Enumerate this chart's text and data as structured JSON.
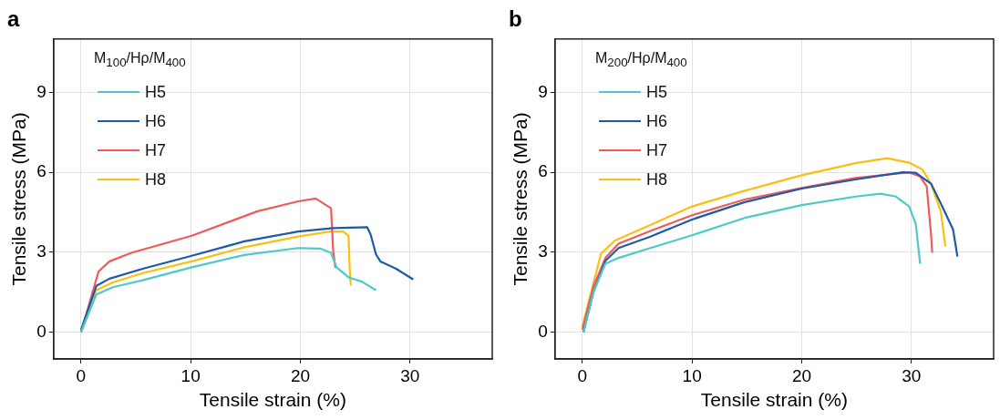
{
  "chart_data": [
    {
      "type": "line",
      "title": "a",
      "xlabel": "Tensile strain (%)",
      "ylabel": "Tensile stress (MPa)",
      "legend_title": "M$_{100}$/Hρ/M$_{400}$",
      "legend": "top left",
      "grid": true,
      "marker": "none",
      "line_style": "solid",
      "xlim": [
        -2.5,
        37.5
      ],
      "xticks": [
        0,
        10,
        20,
        30
      ],
      "ylim": [
        -1,
        11
      ],
      "yticks": [
        0,
        3,
        6,
        9
      ],
      "series": [
        {
          "name": "H5",
          "color": "#4fc8c8",
          "x": [
            0,
            1.4,
            2.9,
            5.7,
            10.1,
            14.9,
            19.8,
            21.8,
            22.8,
            23.3,
            24.4,
            25.6,
            26.9
          ],
          "values": [
            0,
            1.42,
            1.69,
            1.96,
            2.44,
            2.9,
            3.16,
            3.14,
            2.98,
            2.44,
            2.06,
            1.9,
            1.58
          ]
        },
        {
          "name": "H6",
          "color": "#1f5aa6",
          "x": [
            0,
            1.4,
            2.6,
            5.7,
            10.1,
            14.9,
            19.8,
            23,
            26.1,
            26.4,
            26.9,
            27.3,
            28.7,
            30.3
          ],
          "values": [
            0.08,
            1.74,
            2.01,
            2.39,
            2.87,
            3.41,
            3.78,
            3.91,
            3.94,
            3.68,
            2.92,
            2.66,
            2.39,
            1.98
          ]
        },
        {
          "name": "H7",
          "color": "#f05a5a",
          "x": [
            0,
            1.6,
            2.6,
            4.6,
            10.1,
            16.1,
            19.8,
            21.4,
            22.8,
            23,
            23.2
          ],
          "values": [
            0,
            2.28,
            2.66,
            2.98,
            3.62,
            4.54,
            4.91,
            5.02,
            4.65,
            3.03,
            2.41
          ]
        },
        {
          "name": "H8",
          "color": "#fbbf13",
          "x": [
            0,
            1.4,
            2.9,
            5.7,
            10.1,
            14.9,
            19.8,
            22.7,
            23.9,
            24.4,
            24.5,
            24.6
          ],
          "values": [
            0,
            1.58,
            1.87,
            2.23,
            2.66,
            3.19,
            3.59,
            3.78,
            3.78,
            3.62,
            2.39,
            1.76
          ]
        }
      ]
    },
    {
      "type": "line",
      "title": "b",
      "xlabel": "Tensile strain (%)",
      "ylabel": "Tensile stress (MPa)",
      "legend_title": "M$_{200}$/Hρ/M$_{400}$",
      "legend": "top left",
      "grid": true,
      "marker": "none",
      "line_style": "solid",
      "xlim": [
        -2.5,
        37.5
      ],
      "xticks": [
        0,
        10,
        20,
        30
      ],
      "ylim": [
        -1,
        11
      ],
      "yticks": [
        0,
        3,
        6,
        9
      ],
      "series": [
        {
          "name": "H5",
          "color": "#4fc8c8",
          "x": [
            0.1,
            1,
            2.1,
            3.3,
            6.2,
            10,
            14.8,
            20,
            24.9,
            27.2,
            28.6,
            29.8,
            30.4,
            30.8
          ],
          "values": [
            0,
            1.5,
            2.57,
            2.79,
            3.16,
            3.64,
            4.29,
            4.77,
            5.09,
            5.2,
            5.09,
            4.72,
            4.07,
            2.57
          ]
        },
        {
          "name": "H6",
          "color": "#1f5aa6",
          "x": [
            0.1,
            1,
            2.1,
            3.3,
            6.2,
            10,
            14.8,
            20,
            24.9,
            29.2,
            30.4,
            31.8,
            32.7,
            33.8,
            34.2
          ],
          "values": [
            0,
            1.5,
            2.68,
            3.16,
            3.59,
            4.23,
            4.88,
            5.39,
            5.73,
            6,
            5.98,
            5.57,
            4.82,
            3.86,
            2.84
          ]
        },
        {
          "name": "H7",
          "color": "#f05a5a",
          "x": [
            0,
            1,
            2.1,
            3.3,
            6.2,
            10,
            14.8,
            20,
            24.9,
            29.8,
            30.8,
            31.4,
            31.8,
            31.9
          ],
          "values": [
            0.1,
            1.71,
            2.79,
            3.32,
            3.8,
            4.39,
            4.98,
            5.41,
            5.79,
            6,
            5.84,
            5.47,
            3.64,
            2.98
          ]
        },
        {
          "name": "H8",
          "color": "#fbbf13",
          "x": [
            0,
            0.8,
            1.7,
            3,
            6.2,
            10,
            14.8,
            20,
            24.9,
            27.8,
            29.8,
            31,
            31.8,
            32.7,
            33.1
          ],
          "values": [
            0.21,
            1.5,
            2.95,
            3.45,
            4.02,
            4.72,
            5.31,
            5.89,
            6.34,
            6.53,
            6.36,
            6.11,
            5.57,
            4.5,
            3.22
          ]
        }
      ]
    }
  ]
}
